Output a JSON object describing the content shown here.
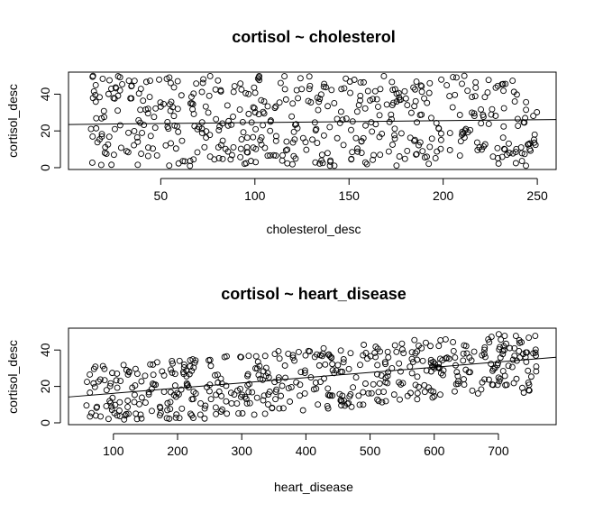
{
  "chart_data": [
    {
      "type": "scatter",
      "title": "cortisol ~ cholesterol",
      "xlabel": "cholesterol_desc",
      "ylabel": "cortisol_desc",
      "xlim": [
        1,
        260
      ],
      "ylim": [
        -1,
        52
      ],
      "xticks": [
        "50",
        "100",
        "150",
        "200",
        "250"
      ],
      "xtick_values": [
        50,
        100,
        150,
        200,
        250
      ],
      "yticks": [
        "0",
        "20",
        "40"
      ],
      "ytick_values": [
        0,
        20,
        40
      ],
      "regression_line": {
        "x": [
          1,
          260
        ],
        "y": [
          23.5,
          26.2
        ]
      },
      "point_count": 500,
      "point_x_range": [
        12,
        250
      ],
      "point_y_range": [
        1,
        50
      ],
      "seed": 7
    },
    {
      "type": "scatter",
      "title": "cortisol ~ heart_disease",
      "xlabel": "heart_disease",
      "ylabel": "cortisol_desc",
      "xlim": [
        30,
        790
      ],
      "ylim": [
        -1,
        52
      ],
      "xticks": [
        "100",
        "200",
        "300",
        "400",
        "500",
        "600",
        "700"
      ],
      "xtick_values": [
        100,
        200,
        300,
        400,
        500,
        600,
        700
      ],
      "yticks": [
        "0",
        "20",
        "40"
      ],
      "ytick_values": [
        0,
        20,
        40
      ],
      "regression_line": {
        "x": [
          30,
          790
        ],
        "y": [
          14.2,
          36.0
        ]
      },
      "point_count": 500,
      "point_x_range": [
        55,
        760
      ],
      "point_y_range": [
        1,
        50
      ],
      "trend": {
        "intercept": 12,
        "slope": 0.029,
        "spread": 17
      },
      "seed": 13
    }
  ]
}
